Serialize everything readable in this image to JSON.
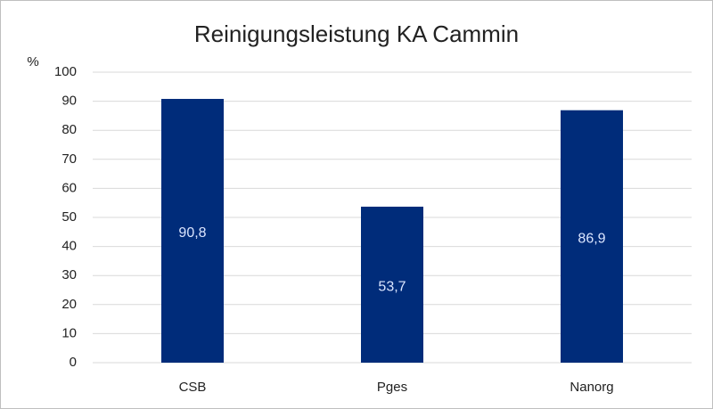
{
  "chart_data": {
    "type": "bar",
    "title": "Reinigungsleistung KA Cammin",
    "y_label": "%",
    "categories": [
      "CSB",
      "Pges",
      "Nanorg"
    ],
    "values": [
      90.8,
      53.7,
      86.9
    ],
    "value_labels": [
      "90,8",
      "53,7",
      "86,9"
    ],
    "color": "#002c7a",
    "ylim": [
      0,
      100
    ],
    "yticks": [
      0,
      10,
      20,
      30,
      40,
      50,
      60,
      70,
      80,
      90,
      100
    ],
    "grid": true
  }
}
